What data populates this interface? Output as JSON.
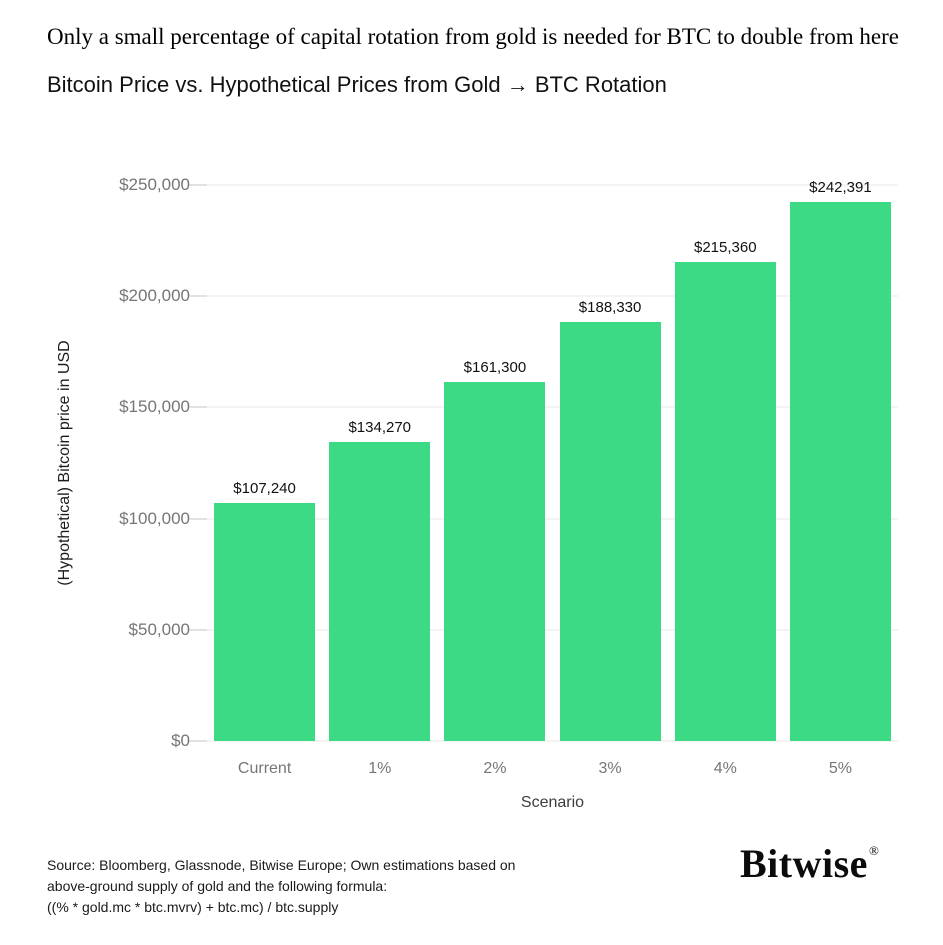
{
  "header": {
    "kicker": "Only a small percentage of capital rotation from gold is needed for BTC to double from here",
    "title": "Bitcoin Price vs. Hypothetical Prices from Gold → BTC Rotation"
  },
  "chart_data": {
    "type": "bar",
    "title": "Bitcoin Price vs. Hypothetical Prices from Gold → BTC Rotation",
    "categories": [
      "Current",
      "1%",
      "2%",
      "3%",
      "4%",
      "5%"
    ],
    "values": [
      107240,
      134270,
      161300,
      188330,
      215360,
      242391
    ],
    "bar_labels": [
      "$107,240",
      "$134,270",
      "$161,300",
      "$188,330",
      "$215,360",
      "$242,391"
    ],
    "xlabel": "Scenario",
    "ylabel": "(Hypothetical) Bitcoin price in USD",
    "ylim": [
      0,
      250000
    ],
    "yticks": [
      {
        "value": 0,
        "label": "$0"
      },
      {
        "value": 50000,
        "label": "$50,000"
      },
      {
        "value": 100000,
        "label": "$100,000"
      },
      {
        "value": 150000,
        "label": "$150,000"
      },
      {
        "value": 200000,
        "label": "$200,000"
      },
      {
        "value": 250000,
        "label": "$250,000"
      }
    ],
    "grid": "horizontal",
    "legend_position": "none",
    "bar_color": "#3dda86"
  },
  "colors": {
    "bar": "#3dda86",
    "gridline": "#e9e9e9",
    "tick": "#c4c4c4",
    "axis_tick_text": "#767676",
    "text": "#111111"
  },
  "footer": {
    "source_lines": [
      "Source: Bloomberg, Glassnode, Bitwise Europe; Own estimations based on",
      "above-ground supply of gold and the following formula:",
      "((% * gold.mc * btc.mvrv) + btc.mc) / btc.supply"
    ],
    "logo_text": "Bitwise",
    "logo_mark": "®"
  }
}
